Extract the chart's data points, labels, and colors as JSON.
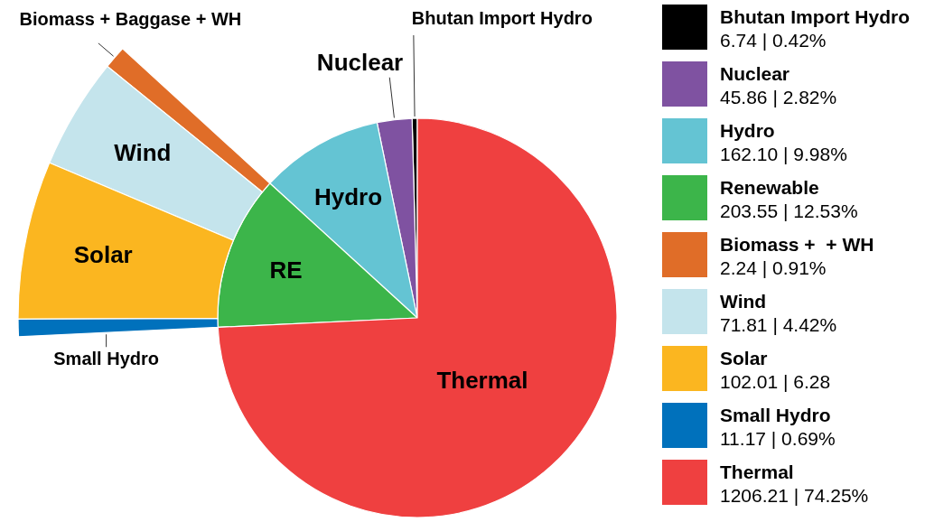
{
  "chart_data": {
    "type": "pie",
    "categories": [
      "Bhutan Import Hydro",
      "Nuclear",
      "Hydro",
      "Renewable",
      "Biomass +  + WH",
      "Wind",
      "Solar",
      "Small Hydro",
      "Thermal"
    ],
    "colors": [
      "#000000",
      "#7f52a1",
      "#64c4d3",
      "#3cb54a",
      "#e06d28",
      "#c4e4ec",
      "#fbb620",
      "#0071bc",
      "#ef4040"
    ],
    "series": [
      {
        "values": [
          0.42,
          2.82,
          9.98,
          12.53,
          null,
          null,
          null,
          null,
          74.25
        ],
        "value_labels": [
          "6.74 | 0.42%",
          "45.86 | 2.82%",
          "162.10 | 9.98%",
          "203.55 | 12.53%",
          null,
          null,
          null,
          null,
          "1206.21 | 74.25%"
        ]
      },
      {
        "values": [
          null,
          null,
          null,
          null,
          0.91,
          4.42,
          6.28,
          0.69,
          null
        ],
        "value_labels": [
          null,
          null,
          null,
          null,
          "2.24 | 0.91%",
          "71.81 | 4.42%",
          "102.01 | 6.28",
          "11.17 | 0.69%",
          null
        ]
      }
    ],
    "annotations": [
      "Bhutan Import Hydro",
      "Nuclear",
      "Hydro",
      "RE",
      "Biomass + Baggase + WH",
      "Wind",
      "Solar",
      "Small Hydro",
      "Thermal"
    ],
    "legend": "right"
  }
}
